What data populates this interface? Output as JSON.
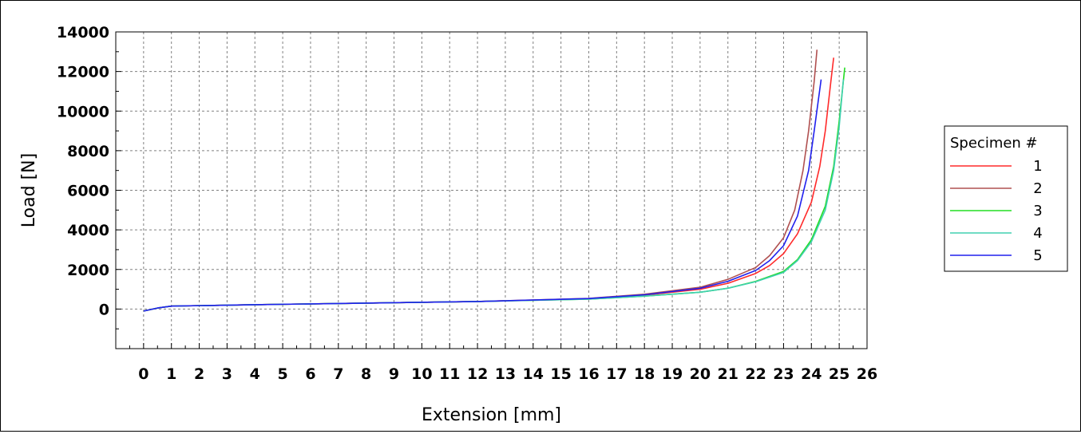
{
  "chart_data": {
    "type": "line",
    "title": "",
    "xlabel": "Extension [mm]",
    "ylabel": "Load [N]",
    "xlim": [
      -1,
      26
    ],
    "ylim": [
      -2000,
      14000
    ],
    "x_ticks": [
      "0",
      "1",
      "2",
      "3",
      "4",
      "5",
      "6",
      "7",
      "8",
      "9",
      "10",
      "11",
      "12",
      "13",
      "14",
      "15",
      "16",
      "17",
      "18",
      "19",
      "20",
      "21",
      "22",
      "23",
      "24",
      "25",
      "26"
    ],
    "y_ticks": [
      "0",
      "2000",
      "4000",
      "6000",
      "8000",
      "10000",
      "12000",
      "14000"
    ],
    "grid": true,
    "legend": {
      "title": "Specimen #",
      "placement": "right"
    },
    "series": [
      {
        "name": "1",
        "color": "#ff2a2a",
        "points": [
          [
            0,
            -100
          ],
          [
            0.5,
            50
          ],
          [
            1,
            150
          ],
          [
            4,
            220
          ],
          [
            8,
            300
          ],
          [
            12,
            380
          ],
          [
            16,
            520
          ],
          [
            18,
            700
          ],
          [
            20,
            1000
          ],
          [
            21,
            1300
          ],
          [
            22,
            1800
          ],
          [
            22.5,
            2200
          ],
          [
            23,
            2800
          ],
          [
            23.5,
            3800
          ],
          [
            24,
            5400
          ],
          [
            24.3,
            7200
          ],
          [
            24.5,
            9000
          ],
          [
            24.7,
            11500
          ],
          [
            24.8,
            12700
          ]
        ]
      },
      {
        "name": "2",
        "color": "#b05050",
        "points": [
          [
            0,
            -100
          ],
          [
            0.5,
            50
          ],
          [
            1,
            150
          ],
          [
            4,
            220
          ],
          [
            8,
            300
          ],
          [
            12,
            380
          ],
          [
            16,
            540
          ],
          [
            18,
            750
          ],
          [
            20,
            1100
          ],
          [
            21,
            1500
          ],
          [
            22,
            2100
          ],
          [
            22.5,
            2700
          ],
          [
            23,
            3600
          ],
          [
            23.4,
            5000
          ],
          [
            23.7,
            7000
          ],
          [
            23.9,
            9000
          ],
          [
            24.1,
            11500
          ],
          [
            24.2,
            13100
          ]
        ]
      },
      {
        "name": "3",
        "color": "#22dd22",
        "points": [
          [
            0,
            -100
          ],
          [
            0.5,
            50
          ],
          [
            1,
            150
          ],
          [
            4,
            220
          ],
          [
            8,
            300
          ],
          [
            12,
            380
          ],
          [
            16,
            500
          ],
          [
            18,
            650
          ],
          [
            20,
            850
          ],
          [
            21,
            1050
          ],
          [
            22,
            1400
          ],
          [
            23,
            1900
          ],
          [
            23.5,
            2500
          ],
          [
            24,
            3500
          ],
          [
            24.5,
            5200
          ],
          [
            24.8,
            7200
          ],
          [
            25,
            9500
          ],
          [
            25.2,
            12200
          ]
        ]
      },
      {
        "name": "4",
        "color": "#40d0b0",
        "points": [
          [
            0,
            -100
          ],
          [
            0.5,
            50
          ],
          [
            1,
            150
          ],
          [
            4,
            220
          ],
          [
            8,
            300
          ],
          [
            12,
            380
          ],
          [
            16,
            500
          ],
          [
            18,
            650
          ],
          [
            20,
            850
          ],
          [
            21,
            1050
          ],
          [
            22,
            1380
          ],
          [
            23,
            1850
          ],
          [
            23.5,
            2450
          ],
          [
            24,
            3400
          ],
          [
            24.5,
            5000
          ],
          [
            24.8,
            7000
          ],
          [
            25,
            9200
          ],
          [
            25.15,
            11600
          ]
        ]
      },
      {
        "name": "5",
        "color": "#2020ee",
        "points": [
          [
            0,
            -100
          ],
          [
            0.5,
            50
          ],
          [
            1,
            150
          ],
          [
            4,
            220
          ],
          [
            8,
            300
          ],
          [
            12,
            380
          ],
          [
            16,
            530
          ],
          [
            18,
            720
          ],
          [
            20,
            1050
          ],
          [
            21,
            1400
          ],
          [
            22,
            1950
          ],
          [
            22.5,
            2450
          ],
          [
            23,
            3200
          ],
          [
            23.5,
            4700
          ],
          [
            23.9,
            7000
          ],
          [
            24.1,
            9000
          ],
          [
            24.35,
            11600
          ]
        ]
      }
    ]
  }
}
